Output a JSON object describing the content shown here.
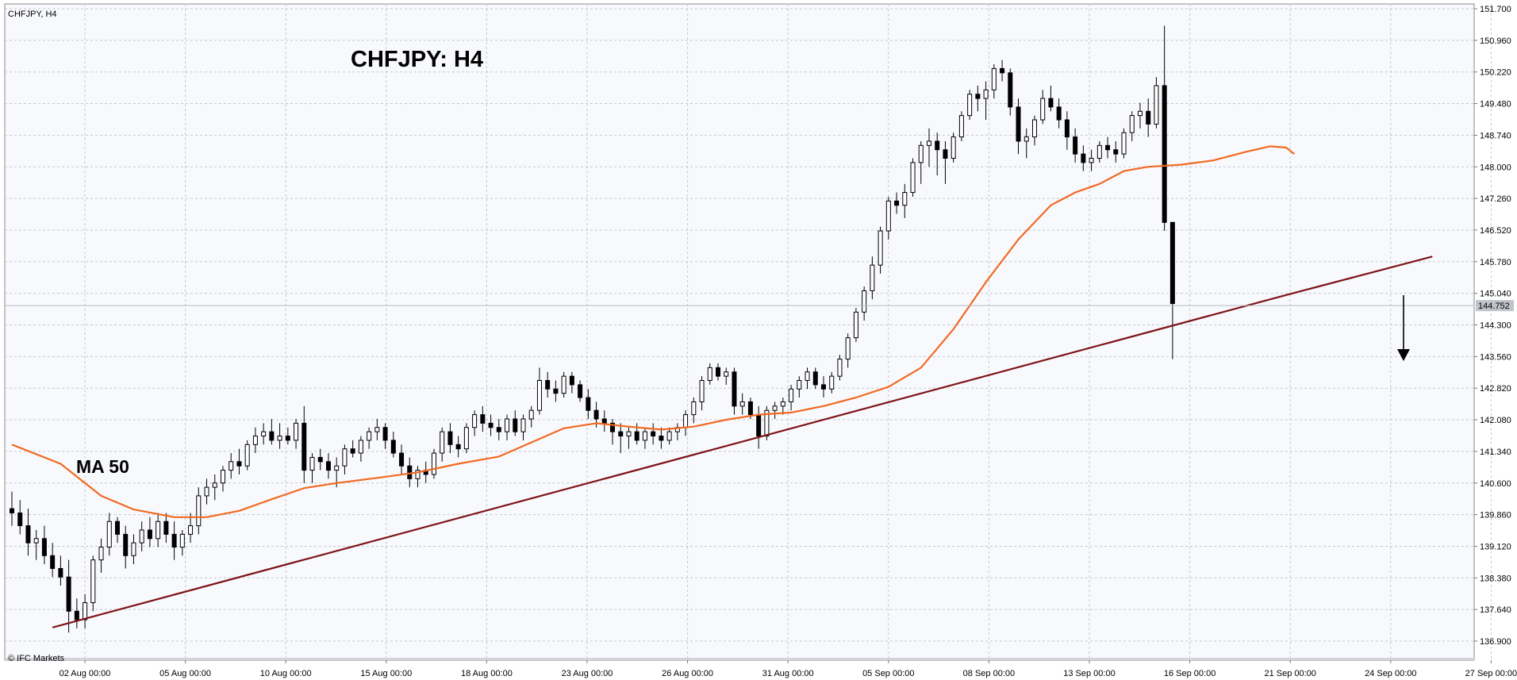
{
  "window": {
    "symbol_label": "CHFJPY, H4",
    "copyright": "© IFC Markets"
  },
  "chart_data": {
    "type": "candlestick",
    "title": "CHFJPY: H4",
    "symbol": "CHFJPY",
    "timeframe": "H4",
    "ylim": [
      136.5,
      151.7
    ],
    "y_ticks": [
      "151.700",
      "150.960",
      "150.220",
      "149.480",
      "148.740",
      "148.000",
      "147.260",
      "146.520",
      "145.780",
      "145.040",
      "144.300",
      "143.560",
      "142.820",
      "142.080",
      "141.340",
      "140.600",
      "139.860",
      "139.120",
      "138.380",
      "137.640",
      "136.900"
    ],
    "x_ticks": [
      "02 Aug 00:00",
      "05 Aug 00:00",
      "10 Aug 00:00",
      "15 Aug 00:00",
      "18 Aug 00:00",
      "23 Aug 00:00",
      "26 Aug 00:00",
      "31 Aug 00:00",
      "05 Sep 00:00",
      "08 Sep 00:00",
      "13 Sep 00:00",
      "16 Sep 00:00",
      "21 Sep 00:00",
      "24 Sep 00:00",
      "27 Sep 00:00"
    ],
    "current_price": "144.752",
    "grid": true,
    "candles": [
      [
        140.0,
        140.4,
        139.6,
        139.9
      ],
      [
        139.9,
        140.2,
        139.4,
        139.6
      ],
      [
        139.6,
        140.0,
        138.9,
        139.2
      ],
      [
        139.2,
        139.5,
        138.8,
        139.3
      ],
      [
        139.3,
        139.6,
        138.7,
        138.9
      ],
      [
        138.9,
        139.2,
        138.4,
        138.6
      ],
      [
        138.6,
        138.9,
        138.2,
        138.4
      ],
      [
        138.4,
        138.8,
        137.1,
        137.6
      ],
      [
        137.6,
        137.9,
        137.2,
        137.4
      ],
      [
        137.4,
        138.0,
        137.2,
        137.8
      ],
      [
        137.8,
        138.9,
        137.6,
        138.8
      ],
      [
        138.8,
        139.3,
        138.5,
        139.1
      ],
      [
        139.1,
        139.9,
        138.9,
        139.7
      ],
      [
        139.7,
        139.8,
        139.2,
        139.4
      ],
      [
        139.4,
        139.6,
        138.6,
        138.9
      ],
      [
        138.9,
        139.4,
        138.7,
        139.2
      ],
      [
        139.2,
        139.7,
        139.0,
        139.5
      ],
      [
        139.5,
        139.8,
        139.1,
        139.3
      ],
      [
        139.3,
        139.9,
        139.1,
        139.7
      ],
      [
        139.7,
        139.9,
        139.2,
        139.4
      ],
      [
        139.4,
        139.7,
        138.8,
        139.1
      ],
      [
        139.1,
        139.5,
        138.9,
        139.4
      ],
      [
        139.4,
        139.9,
        139.2,
        139.6
      ],
      [
        139.6,
        140.5,
        139.4,
        140.3
      ],
      [
        140.3,
        140.7,
        140.1,
        140.5
      ],
      [
        140.5,
        140.8,
        140.2,
        140.6
      ],
      [
        140.6,
        141.0,
        140.4,
        140.9
      ],
      [
        140.9,
        141.3,
        140.7,
        141.1
      ],
      [
        141.1,
        141.4,
        140.8,
        141.0
      ],
      [
        141.0,
        141.6,
        140.9,
        141.5
      ],
      [
        141.5,
        141.9,
        141.3,
        141.7
      ],
      [
        141.7,
        142.0,
        141.5,
        141.8
      ],
      [
        141.8,
        142.1,
        141.5,
        141.6
      ],
      [
        141.6,
        142.0,
        141.4,
        141.7
      ],
      [
        141.7,
        141.9,
        141.5,
        141.6
      ],
      [
        141.6,
        142.1,
        141.4,
        142.0
      ],
      [
        142.0,
        142.4,
        140.6,
        140.9
      ],
      [
        140.9,
        141.3,
        140.6,
        141.2
      ],
      [
        141.2,
        141.4,
        140.9,
        141.1
      ],
      [
        141.1,
        141.3,
        140.7,
        140.9
      ],
      [
        140.9,
        141.2,
        140.5,
        141.0
      ],
      [
        141.0,
        141.5,
        140.8,
        141.4
      ],
      [
        141.4,
        141.6,
        141.2,
        141.3
      ],
      [
        141.3,
        141.7,
        141.1,
        141.6
      ],
      [
        141.6,
        141.9,
        141.4,
        141.8
      ],
      [
        141.8,
        142.1,
        141.6,
        141.9
      ],
      [
        141.9,
        142.0,
        141.4,
        141.6
      ],
      [
        141.6,
        141.8,
        141.2,
        141.3
      ],
      [
        141.3,
        141.5,
        140.8,
        141.0
      ],
      [
        141.0,
        141.2,
        140.5,
        140.7
      ],
      [
        140.7,
        141.0,
        140.5,
        140.9
      ],
      [
        140.9,
        141.1,
        140.6,
        140.8
      ],
      [
        140.8,
        141.4,
        140.7,
        141.3
      ],
      [
        141.3,
        141.9,
        141.1,
        141.8
      ],
      [
        141.8,
        142.0,
        141.3,
        141.5
      ],
      [
        141.5,
        141.7,
        141.2,
        141.4
      ],
      [
        141.4,
        142.0,
        141.3,
        141.9
      ],
      [
        141.9,
        142.3,
        141.7,
        142.2
      ],
      [
        142.2,
        142.4,
        141.8,
        142.0
      ],
      [
        142.0,
        142.2,
        141.7,
        141.9
      ],
      [
        141.9,
        142.1,
        141.6,
        141.8
      ],
      [
        141.8,
        142.2,
        141.6,
        142.1
      ],
      [
        142.1,
        142.3,
        141.7,
        141.8
      ],
      [
        141.8,
        142.2,
        141.6,
        142.1
      ],
      [
        142.1,
        142.4,
        141.9,
        142.3
      ],
      [
        142.3,
        143.3,
        142.2,
        143.0
      ],
      [
        143.0,
        143.2,
        142.6,
        142.8
      ],
      [
        142.8,
        143.0,
        142.5,
        142.7
      ],
      [
        142.7,
        143.2,
        142.6,
        143.1
      ],
      [
        143.1,
        143.2,
        142.7,
        142.9
      ],
      [
        142.9,
        143.0,
        142.5,
        142.6
      ],
      [
        142.6,
        142.8,
        142.1,
        142.3
      ],
      [
        142.3,
        142.5,
        141.9,
        142.1
      ],
      [
        142.1,
        142.3,
        141.8,
        142.0
      ],
      [
        142.0,
        142.1,
        141.5,
        141.8
      ],
      [
        141.8,
        142.0,
        141.3,
        141.7
      ],
      [
        141.7,
        141.9,
        141.4,
        141.8
      ],
      [
        141.8,
        142.0,
        141.5,
        141.6
      ],
      [
        141.6,
        141.9,
        141.4,
        141.8
      ],
      [
        141.8,
        142.0,
        141.5,
        141.7
      ],
      [
        141.7,
        141.9,
        141.4,
        141.6
      ],
      [
        141.6,
        141.9,
        141.5,
        141.8
      ],
      [
        141.8,
        142.0,
        141.6,
        141.9
      ],
      [
        141.9,
        142.3,
        141.7,
        142.2
      ],
      [
        142.2,
        142.6,
        142.0,
        142.5
      ],
      [
        142.5,
        143.1,
        142.3,
        143.0
      ],
      [
        143.0,
        143.4,
        142.9,
        143.3
      ],
      [
        143.3,
        143.4,
        143.0,
        143.1
      ],
      [
        143.1,
        143.3,
        142.9,
        143.2
      ],
      [
        143.2,
        143.3,
        142.2,
        142.4
      ],
      [
        142.4,
        142.7,
        142.2,
        142.5
      ],
      [
        142.5,
        142.6,
        142.1,
        142.2
      ],
      [
        142.2,
        142.4,
        141.4,
        141.7
      ],
      [
        141.7,
        142.4,
        141.6,
        142.3
      ],
      [
        142.3,
        142.5,
        142.1,
        142.4
      ],
      [
        142.4,
        142.6,
        142.2,
        142.5
      ],
      [
        142.5,
        142.9,
        142.3,
        142.8
      ],
      [
        142.8,
        143.1,
        142.6,
        143.0
      ],
      [
        143.0,
        143.3,
        142.8,
        143.2
      ],
      [
        143.2,
        143.3,
        142.8,
        142.9
      ],
      [
        142.9,
        143.1,
        142.6,
        142.8
      ],
      [
        142.8,
        143.2,
        142.7,
        143.1
      ],
      [
        143.1,
        143.6,
        143.0,
        143.5
      ],
      [
        143.5,
        144.1,
        143.3,
        144.0
      ],
      [
        144.0,
        144.7,
        143.9,
        144.6
      ],
      [
        144.6,
        145.2,
        144.4,
        145.1
      ],
      [
        145.1,
        145.9,
        144.9,
        145.7
      ],
      [
        145.7,
        146.6,
        145.5,
        146.5
      ],
      [
        146.5,
        147.3,
        146.3,
        147.2
      ],
      [
        147.2,
        147.4,
        146.9,
        147.1
      ],
      [
        147.1,
        147.6,
        146.8,
        147.4
      ],
      [
        147.4,
        148.2,
        147.3,
        148.1
      ],
      [
        148.1,
        148.6,
        147.6,
        148.5
      ],
      [
        148.5,
        148.9,
        148.0,
        148.6
      ],
      [
        148.6,
        148.8,
        147.8,
        148.4
      ],
      [
        148.4,
        148.6,
        147.6,
        148.2
      ],
      [
        148.2,
        148.8,
        148.1,
        148.7
      ],
      [
        148.7,
        149.3,
        148.6,
        149.2
      ],
      [
        149.2,
        149.8,
        149.1,
        149.7
      ],
      [
        149.7,
        149.9,
        149.3,
        149.6
      ],
      [
        149.6,
        150.0,
        149.1,
        149.8
      ],
      [
        149.8,
        150.4,
        149.6,
        150.3
      ],
      [
        150.3,
        150.5,
        150.0,
        150.2
      ],
      [
        150.2,
        150.3,
        149.2,
        149.4
      ],
      [
        149.4,
        149.6,
        148.3,
        148.6
      ],
      [
        148.6,
        148.9,
        148.2,
        148.7
      ],
      [
        148.7,
        149.2,
        148.5,
        149.1
      ],
      [
        149.1,
        149.8,
        149.0,
        149.6
      ],
      [
        149.6,
        149.9,
        149.3,
        149.4
      ],
      [
        149.4,
        149.6,
        148.9,
        149.1
      ],
      [
        149.1,
        149.3,
        148.4,
        148.7
      ],
      [
        148.7,
        148.9,
        148.1,
        148.3
      ],
      [
        148.3,
        148.5,
        147.9,
        148.1
      ],
      [
        148.1,
        148.4,
        147.9,
        148.2
      ],
      [
        148.2,
        148.6,
        148.1,
        148.5
      ],
      [
        148.5,
        148.7,
        148.2,
        148.4
      ],
      [
        148.4,
        148.6,
        148.1,
        148.3
      ],
      [
        148.3,
        148.9,
        148.2,
        148.8
      ],
      [
        148.8,
        149.3,
        148.6,
        149.2
      ],
      [
        149.2,
        149.5,
        148.9,
        149.3
      ],
      [
        149.3,
        149.6,
        148.7,
        149.0
      ],
      [
        149.0,
        150.1,
        148.9,
        149.9
      ],
      [
        149.9,
        151.3,
        146.5,
        146.7
      ],
      [
        146.7,
        146.7,
        143.5,
        144.8
      ]
    ],
    "ma50": [
      [
        0,
        141.5
      ],
      [
        6,
        141.05
      ],
      [
        11,
        140.3
      ],
      [
        15,
        139.98
      ],
      [
        20,
        139.8
      ],
      [
        24,
        139.8
      ],
      [
        28,
        139.95
      ],
      [
        32,
        140.22
      ],
      [
        36,
        140.48
      ],
      [
        40,
        140.6
      ],
      [
        45,
        140.72
      ],
      [
        50,
        140.85
      ],
      [
        55,
        141.05
      ],
      [
        60,
        141.22
      ],
      [
        64,
        141.55
      ],
      [
        68,
        141.88
      ],
      [
        72,
        142.0
      ],
      [
        76,
        141.92
      ],
      [
        80,
        141.85
      ],
      [
        84,
        141.92
      ],
      [
        88,
        142.08
      ],
      [
        92,
        142.2
      ],
      [
        96,
        142.25
      ],
      [
        100,
        142.4
      ],
      [
        104,
        142.6
      ],
      [
        108,
        142.85
      ],
      [
        112,
        143.3
      ],
      [
        116,
        144.2
      ],
      [
        120,
        145.3
      ],
      [
        124,
        146.3
      ],
      [
        128,
        147.1
      ],
      [
        131,
        147.4
      ],
      [
        134,
        147.6
      ],
      [
        137,
        147.9
      ],
      [
        140,
        148.0
      ],
      [
        144,
        148.05
      ],
      [
        148,
        148.15
      ],
      [
        152,
        148.35
      ],
      [
        155,
        148.48
      ],
      [
        157,
        148.45
      ],
      [
        158,
        148.3
      ]
    ],
    "trendline": [
      [
        5,
        137.22
      ],
      [
        157,
        145.0
      ],
      [
        175,
        145.9
      ]
    ],
    "annotations": {
      "ma_label": "MA 50"
    }
  }
}
